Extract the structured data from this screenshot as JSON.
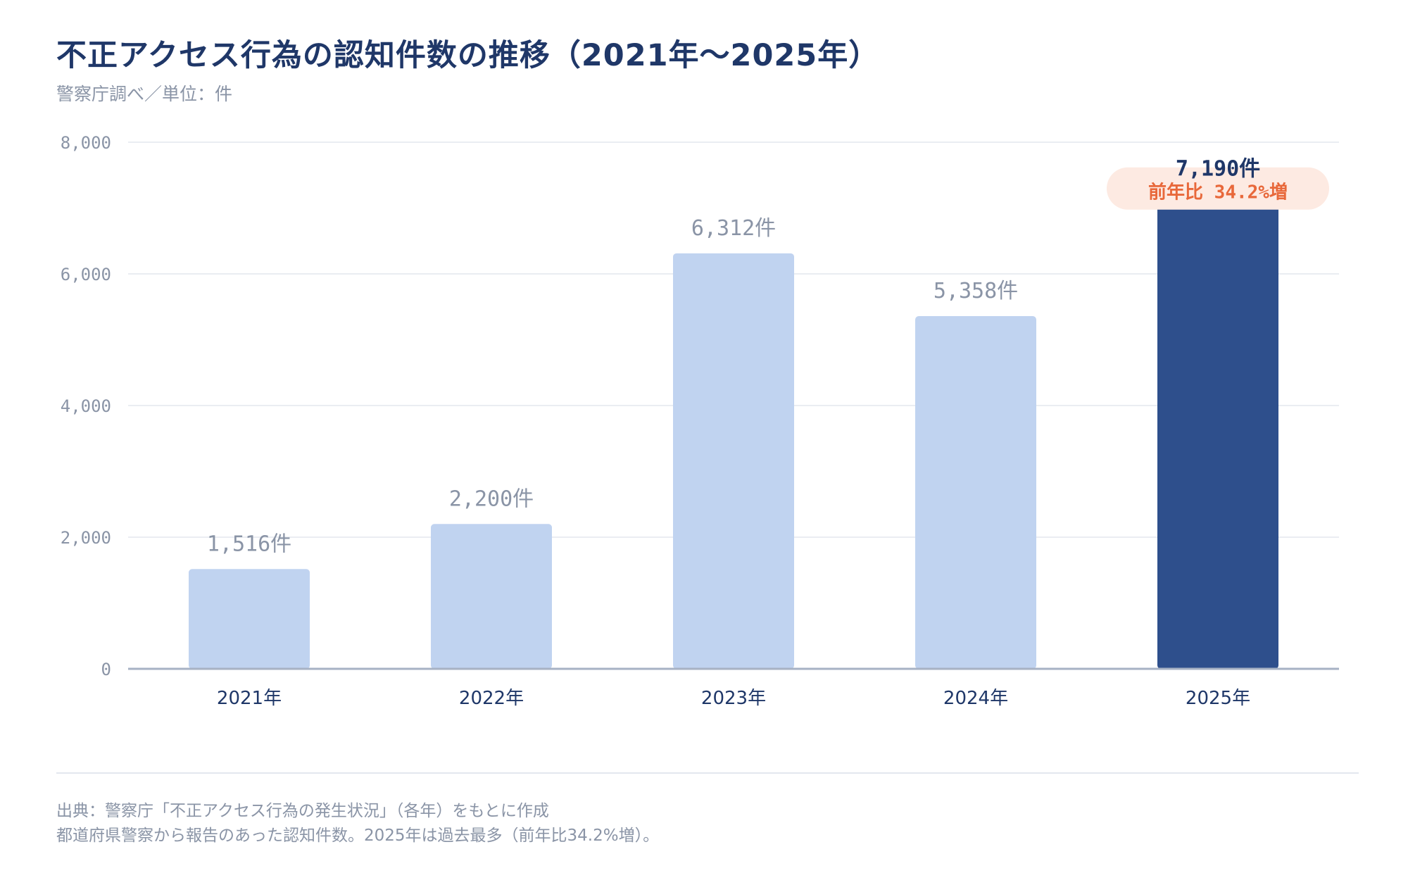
{
  "header": {
    "title": "不正アクセス行為の認知件数の推移（2021年〜2025年）",
    "subtitle": "警察庁調べ／単位：件"
  },
  "chart_data": {
    "type": "bar",
    "categories": [
      "2021年",
      "2022年",
      "2023年",
      "2024年",
      "2025年"
    ],
    "values": [
      1516,
      2200,
      6312,
      5358,
      7190
    ],
    "data_labels": [
      "1,516件",
      "2,200件",
      "6,312件",
      "5,358件",
      "7,190件"
    ],
    "yticks": [
      "0",
      "2,000",
      "4,000",
      "6,000",
      "8,000"
    ],
    "ylim": [
      0,
      8000
    ],
    "grid": true,
    "highlight": {
      "category": "2025年",
      "annotation": "前年比 34.2%増"
    },
    "colors": {
      "bar": "#c0d3f0",
      "highlight_bar": "#2e4f8c",
      "highlight_label": "#1f3768",
      "annotation_text": "#e8683a",
      "annotation_bg": "#fdeae2",
      "label": "#8a94a6",
      "category": "#1f3768",
      "grid": "#e3e7ee",
      "axis": "#a7b2c4"
    }
  },
  "footer": {
    "source": "出典：警察庁「不正アクセス行為の発生状況」（各年）をもとに作成",
    "note": "都道府県警察から報告のあった認知件数。2025年は過去最多（前年比34.2%増）。"
  }
}
